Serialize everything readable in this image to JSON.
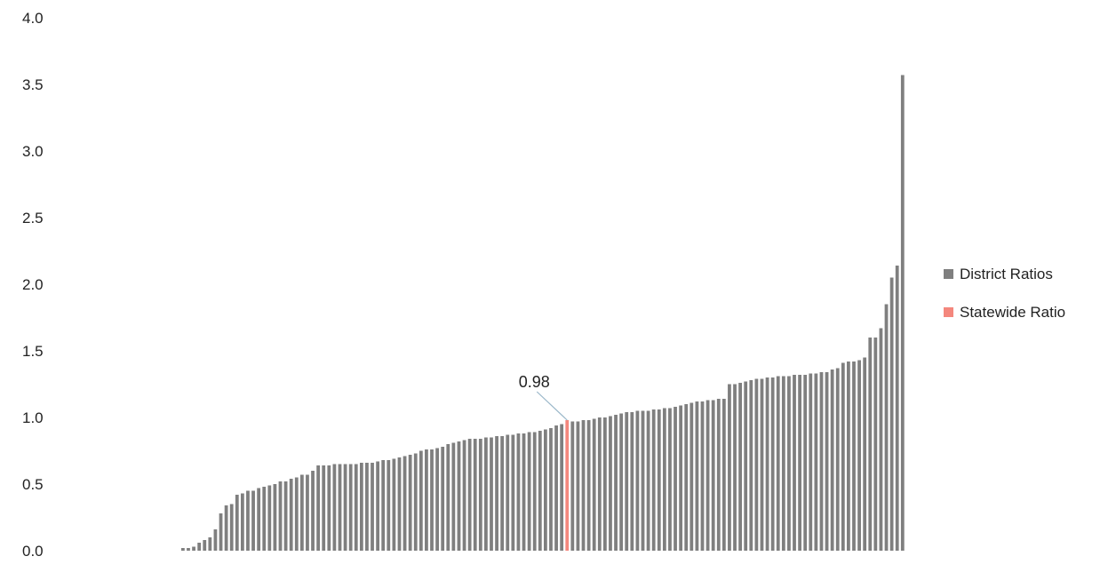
{
  "chart_data": {
    "type": "bar",
    "title": "",
    "xlabel": "",
    "ylabel": "",
    "ylim": [
      0,
      4
    ],
    "yticks": [
      "0.0",
      "0.5",
      "1.0",
      "1.5",
      "2.0",
      "2.5",
      "3.0",
      "3.5",
      "4.0"
    ],
    "grid": false,
    "legend_position": "right",
    "colors": {
      "district": "#7f7f7f",
      "statewide": "#f4877d",
      "annotation_line": "#9ab7c9"
    },
    "series": [
      {
        "name": "District Ratios",
        "values": [
          0.02,
          0.02,
          0.03,
          0.06,
          0.08,
          0.1,
          0.16,
          0.28,
          0.34,
          0.35,
          0.42,
          0.43,
          0.45,
          0.45,
          0.47,
          0.48,
          0.49,
          0.5,
          0.52,
          0.52,
          0.54,
          0.55,
          0.57,
          0.57,
          0.6,
          0.64,
          0.64,
          0.64,
          0.65,
          0.65,
          0.65,
          0.65,
          0.65,
          0.66,
          0.66,
          0.66,
          0.67,
          0.68,
          0.68,
          0.69,
          0.7,
          0.71,
          0.72,
          0.73,
          0.75,
          0.76,
          0.76,
          0.77,
          0.78,
          0.8,
          0.81,
          0.82,
          0.83,
          0.84,
          0.84,
          0.84,
          0.85,
          0.85,
          0.86,
          0.86,
          0.87,
          0.87,
          0.88,
          0.88,
          0.89,
          0.89,
          0.9,
          0.91,
          0.92,
          0.94,
          0.95,
          0.98,
          0.97,
          0.97,
          0.98,
          0.98,
          0.99,
          1.0,
          1.0,
          1.01,
          1.02,
          1.03,
          1.04,
          1.04,
          1.05,
          1.05,
          1.05,
          1.06,
          1.06,
          1.07,
          1.07,
          1.08,
          1.09,
          1.1,
          1.11,
          1.12,
          1.12,
          1.13,
          1.13,
          1.14,
          1.14,
          1.25,
          1.25,
          1.26,
          1.27,
          1.28,
          1.29,
          1.29,
          1.3,
          1.3,
          1.31,
          1.31,
          1.31,
          1.32,
          1.32,
          1.32,
          1.33,
          1.33,
          1.34,
          1.34,
          1.36,
          1.37,
          1.41,
          1.42,
          1.42,
          1.43,
          1.45,
          1.6,
          1.6,
          1.67,
          1.85,
          2.05,
          2.14,
          3.57
        ]
      },
      {
        "name": "Statewide Ratio",
        "index": 71,
        "value": 0.98,
        "label": "0.98"
      }
    ]
  }
}
